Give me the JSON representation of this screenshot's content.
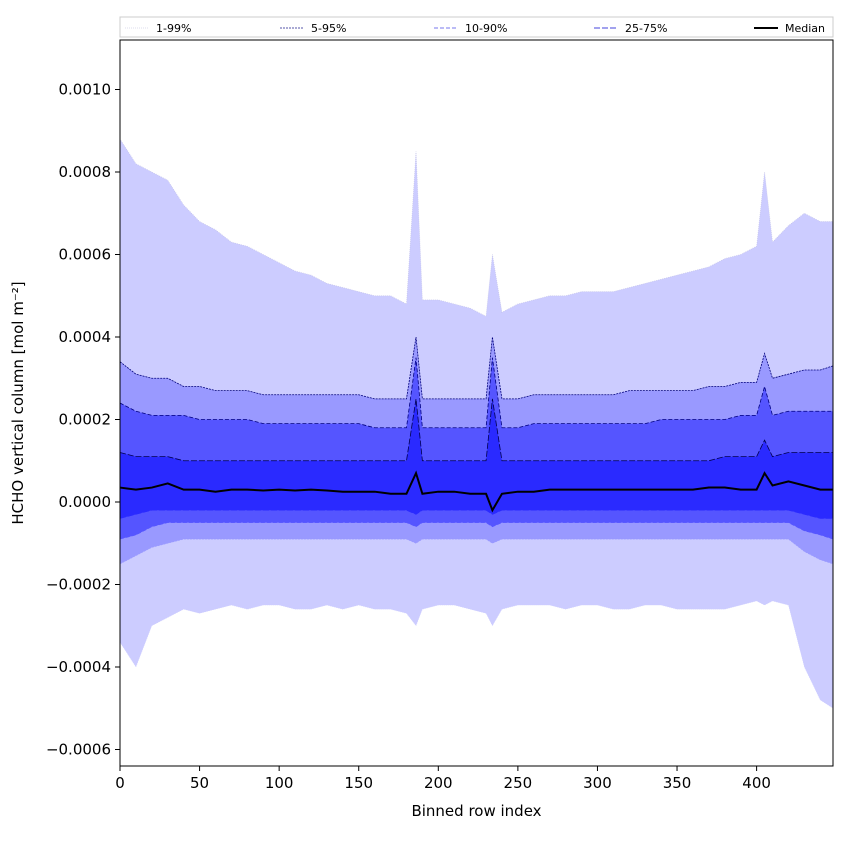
{
  "chart_data": {
    "type": "area",
    "xlabel": "Binned row index",
    "ylabel": "HCHO vertical column [mol m⁻²]",
    "xlim": [
      0,
      448
    ],
    "ylim": [
      -0.00064,
      0.00112
    ],
    "xticks": [
      0,
      50,
      100,
      150,
      200,
      250,
      300,
      350,
      400
    ],
    "yticks": [
      -0.0006,
      -0.0004,
      -0.0002,
      0.0,
      0.0002,
      0.0004,
      0.0006,
      0.0008,
      0.001
    ],
    "ytick_labels": [
      "−0.0006",
      "−0.0004",
      "−0.0002",
      "0.0000",
      "0.0002",
      "0.0004",
      "0.0006",
      "0.0008",
      "0.0010"
    ],
    "grid": false,
    "legend_position": "top (above plot, single row)",
    "x": [
      0,
      10,
      20,
      30,
      40,
      50,
      60,
      70,
      80,
      90,
      100,
      110,
      120,
      130,
      140,
      150,
      160,
      170,
      180,
      186,
      190,
      200,
      210,
      220,
      230,
      234,
      240,
      250,
      260,
      270,
      280,
      290,
      300,
      310,
      320,
      330,
      340,
      350,
      360,
      370,
      380,
      390,
      400,
      405,
      410,
      420,
      430,
      440,
      448
    ],
    "series": [
      {
        "name": "1-99%",
        "color": "#ccccff",
        "upper": [
          0.00088,
          0.00082,
          0.0008,
          0.00078,
          0.00072,
          0.00068,
          0.00066,
          0.00063,
          0.00062,
          0.0006,
          0.00058,
          0.00056,
          0.00055,
          0.00053,
          0.00052,
          0.00051,
          0.0005,
          0.0005,
          0.00048,
          0.00085,
          0.00049,
          0.00049,
          0.00048,
          0.00047,
          0.00045,
          0.0006,
          0.00046,
          0.00048,
          0.00049,
          0.0005,
          0.0005,
          0.00051,
          0.00051,
          0.00051,
          0.00052,
          0.00053,
          0.00054,
          0.00055,
          0.00056,
          0.00057,
          0.00059,
          0.0006,
          0.00062,
          0.0008,
          0.00063,
          0.00067,
          0.0007,
          0.00068,
          0.00068
        ],
        "lower": [
          -0.00034,
          -0.0004,
          -0.0003,
          -0.00028,
          -0.00026,
          -0.00027,
          -0.00026,
          -0.00025,
          -0.00026,
          -0.00025,
          -0.00025,
          -0.00026,
          -0.00026,
          -0.00025,
          -0.00026,
          -0.00025,
          -0.00026,
          -0.00026,
          -0.00027,
          -0.0003,
          -0.00026,
          -0.00025,
          -0.00025,
          -0.00026,
          -0.00027,
          -0.0003,
          -0.00026,
          -0.00025,
          -0.00025,
          -0.00025,
          -0.00026,
          -0.00025,
          -0.00025,
          -0.00026,
          -0.00026,
          -0.00025,
          -0.00025,
          -0.00026,
          -0.00026,
          -0.00026,
          -0.00026,
          -0.00025,
          -0.00024,
          -0.00025,
          -0.00024,
          -0.00025,
          -0.0004,
          -0.00048,
          -0.0005
        ]
      },
      {
        "name": "5-95%",
        "color": "#9999ff",
        "upper": [
          0.00034,
          0.00031,
          0.0003,
          0.0003,
          0.00028,
          0.00028,
          0.00027,
          0.00027,
          0.00027,
          0.00026,
          0.00026,
          0.00026,
          0.00026,
          0.00026,
          0.00026,
          0.00026,
          0.00025,
          0.00025,
          0.00025,
          0.0004,
          0.00025,
          0.00025,
          0.00025,
          0.00025,
          0.00025,
          0.0004,
          0.00025,
          0.00025,
          0.00026,
          0.00026,
          0.00026,
          0.00026,
          0.00026,
          0.00026,
          0.00027,
          0.00027,
          0.00027,
          0.00027,
          0.00027,
          0.00028,
          0.00028,
          0.00029,
          0.00029,
          0.00036,
          0.0003,
          0.00031,
          0.00032,
          0.00032,
          0.00033
        ],
        "lower": [
          -0.00015,
          -0.00013,
          -0.00011,
          -0.0001,
          -9e-05,
          -9e-05,
          -9e-05,
          -9e-05,
          -9e-05,
          -9e-05,
          -9e-05,
          -9e-05,
          -9e-05,
          -9e-05,
          -9e-05,
          -9e-05,
          -9e-05,
          -9e-05,
          -9e-05,
          -0.0001,
          -9e-05,
          -9e-05,
          -9e-05,
          -9e-05,
          -9e-05,
          -0.0001,
          -9e-05,
          -9e-05,
          -9e-05,
          -9e-05,
          -9e-05,
          -9e-05,
          -9e-05,
          -9e-05,
          -9e-05,
          -9e-05,
          -9e-05,
          -9e-05,
          -9e-05,
          -9e-05,
          -9e-05,
          -9e-05,
          -9e-05,
          -9e-05,
          -9e-05,
          -9e-05,
          -0.00012,
          -0.00014,
          -0.00015
        ]
      },
      {
        "name": "10-90%",
        "color": "#5555ff",
        "upper": [
          0.00024,
          0.00022,
          0.00021,
          0.00021,
          0.00021,
          0.0002,
          0.0002,
          0.0002,
          0.0002,
          0.00019,
          0.00019,
          0.00019,
          0.00019,
          0.00019,
          0.00019,
          0.00019,
          0.00018,
          0.00018,
          0.00018,
          0.00035,
          0.00018,
          0.00018,
          0.00018,
          0.00018,
          0.00018,
          0.00035,
          0.00018,
          0.00018,
          0.00019,
          0.00019,
          0.00019,
          0.00019,
          0.00019,
          0.00019,
          0.00019,
          0.00019,
          0.0002,
          0.0002,
          0.0002,
          0.0002,
          0.0002,
          0.00021,
          0.00021,
          0.00028,
          0.00021,
          0.00022,
          0.00022,
          0.00022,
          0.00022
        ],
        "lower": [
          -9e-05,
          -8e-05,
          -6e-05,
          -5e-05,
          -5e-05,
          -5e-05,
          -5e-05,
          -5e-05,
          -5e-05,
          -5e-05,
          -5e-05,
          -5e-05,
          -5e-05,
          -5e-05,
          -5e-05,
          -5e-05,
          -5e-05,
          -5e-05,
          -5e-05,
          -6e-05,
          -5e-05,
          -5e-05,
          -5e-05,
          -5e-05,
          -5e-05,
          -6e-05,
          -5e-05,
          -5e-05,
          -5e-05,
          -5e-05,
          -5e-05,
          -5e-05,
          -5e-05,
          -5e-05,
          -5e-05,
          -5e-05,
          -5e-05,
          -5e-05,
          -5e-05,
          -5e-05,
          -5e-05,
          -5e-05,
          -5e-05,
          -5e-05,
          -5e-05,
          -5e-05,
          -7e-05,
          -8e-05,
          -9e-05
        ]
      },
      {
        "name": "25-75%",
        "color": "#2a2aff",
        "upper": [
          0.00012,
          0.00011,
          0.00011,
          0.00011,
          0.0001,
          0.0001,
          0.0001,
          0.0001,
          0.0001,
          0.0001,
          0.0001,
          0.0001,
          0.0001,
          0.0001,
          0.0001,
          0.0001,
          0.0001,
          0.0001,
          0.0001,
          0.00025,
          0.0001,
          0.0001,
          0.0001,
          0.0001,
          0.0001,
          0.00025,
          0.0001,
          0.0001,
          0.0001,
          0.0001,
          0.0001,
          0.0001,
          0.0001,
          0.0001,
          0.0001,
          0.0001,
          0.0001,
          0.0001,
          0.0001,
          0.0001,
          0.00011,
          0.00011,
          0.00011,
          0.00015,
          0.00011,
          0.00012,
          0.00012,
          0.00012,
          0.00012
        ],
        "lower": [
          -4e-05,
          -3e-05,
          -2e-05,
          -2e-05,
          -2e-05,
          -2e-05,
          -2e-05,
          -2e-05,
          -2e-05,
          -2e-05,
          -2e-05,
          -2e-05,
          -2e-05,
          -2e-05,
          -2e-05,
          -2e-05,
          -2e-05,
          -2e-05,
          -2e-05,
          -3e-05,
          -2e-05,
          -2e-05,
          -2e-05,
          -2e-05,
          -2e-05,
          -3e-05,
          -2e-05,
          -2e-05,
          -2e-05,
          -2e-05,
          -2e-05,
          -2e-05,
          -2e-05,
          -2e-05,
          -2e-05,
          -2e-05,
          -2e-05,
          -2e-05,
          -2e-05,
          -2e-05,
          -2e-05,
          -2e-05,
          -2e-05,
          -2e-05,
          -2e-05,
          -2e-05,
          -3e-05,
          -4e-05,
          -4e-05
        ]
      },
      {
        "name": "Median",
        "color": "#000000",
        "values": [
          3.5e-05,
          3e-05,
          3.5e-05,
          4.5e-05,
          3e-05,
          3e-05,
          2.5e-05,
          3e-05,
          3e-05,
          2.8e-05,
          3e-05,
          2.8e-05,
          3e-05,
          2.8e-05,
          2.5e-05,
          2.5e-05,
          2.5e-05,
          2e-05,
          2e-05,
          7e-05,
          2e-05,
          2.5e-05,
          2.5e-05,
          2e-05,
          2e-05,
          -2e-05,
          2e-05,
          2.5e-05,
          2.5e-05,
          3e-05,
          3e-05,
          3e-05,
          3e-05,
          3e-05,
          3e-05,
          3e-05,
          3e-05,
          3e-05,
          3e-05,
          3.5e-05,
          3.5e-05,
          3e-05,
          3e-05,
          7e-05,
          4e-05,
          5e-05,
          4e-05,
          3e-05,
          3e-05
        ]
      }
    ]
  }
}
